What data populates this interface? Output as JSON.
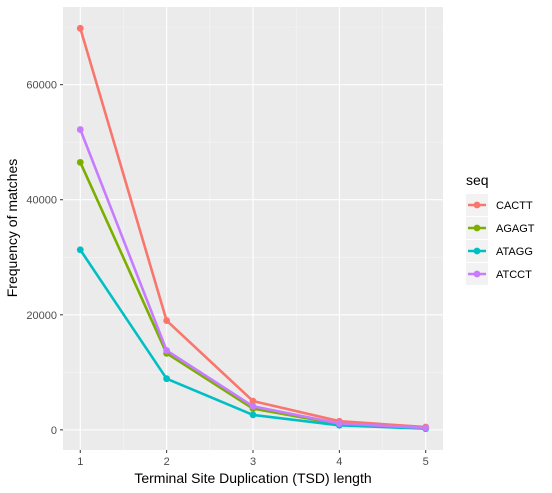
{
  "chart_data": {
    "type": "line",
    "xlabel": "Terminal Site Duplication (TSD) length",
    "ylabel": "Frequency of matches",
    "x": [
      1,
      2,
      3,
      4,
      5
    ],
    "x_ticks": [
      "1",
      "2",
      "3",
      "4",
      "5"
    ],
    "y_ticks": [
      "0",
      "20000",
      "40000",
      "60000"
    ],
    "xlim": [
      0.8,
      5.2
    ],
    "ylim": [
      -3500,
      73500
    ],
    "grid": true,
    "legend_title": "seq",
    "legend_position": "right",
    "series": [
      {
        "name": "CACTT",
        "color": "#F8766D",
        "values": [
          69800,
          19000,
          5000,
          1500,
          500
        ]
      },
      {
        "name": "AGAGT",
        "color": "#7CAE00",
        "values": [
          46500,
          13300,
          3700,
          1000,
          300
        ]
      },
      {
        "name": "ATAGG",
        "color": "#00BFC4",
        "values": [
          31300,
          8900,
          2600,
          800,
          200
        ]
      },
      {
        "name": "ATCCT",
        "color": "#C77CFF",
        "values": [
          52200,
          13800,
          4100,
          1100,
          350
        ]
      }
    ]
  }
}
